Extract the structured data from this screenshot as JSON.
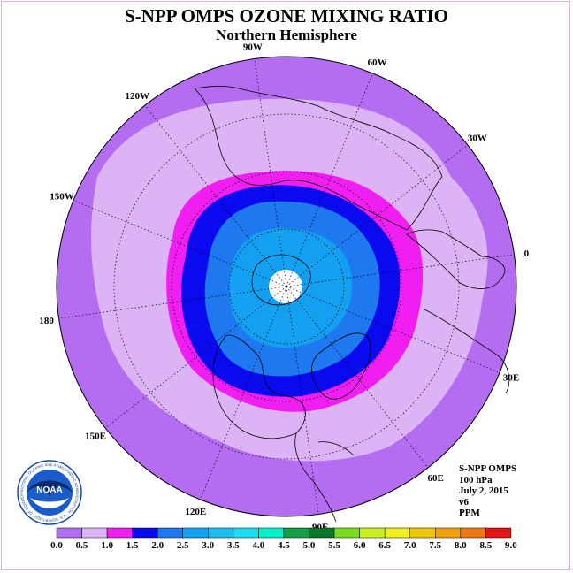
{
  "title": "S-NPP OMPS OZONE MIXING RATIO",
  "subtitle": "Northern Hemisphere",
  "longitude_labels": [
    "0",
    "30E",
    "60E",
    "90E",
    "120E",
    "150E",
    "180",
    "150W",
    "120W",
    "90W",
    "60W",
    "30W"
  ],
  "info": {
    "instrument": "S-NPP OMPS",
    "level": "100 hPa",
    "date": "July 2, 2015",
    "version": "v6",
    "units": "PPM"
  },
  "logo": {
    "text": "NOAA",
    "ring_text": "NATIONAL OCEANIC AND ATMOSPHERIC ADMINISTRATION · U.S. DEPARTMENT OF COMMERCE"
  },
  "colorbar": {
    "ticks": [
      "0.0",
      "0.5",
      "1.0",
      "1.5",
      "2.0",
      "2.5",
      "3.0",
      "3.5",
      "4.0",
      "4.5",
      "5.0",
      "5.5",
      "6.0",
      "6.5",
      "7.0",
      "7.5",
      "8.0",
      "8.5",
      "9.0"
    ],
    "colors": [
      "#b46cf0",
      "#dcb4f6",
      "#f01ef0",
      "#0a0aef",
      "#1e78f0",
      "#14a0f0",
      "#1ebef0",
      "#1edcf0",
      "#00f0c8",
      "#14a046",
      "#0a7828",
      "#78dc1e",
      "#c8f01e",
      "#f0f01e",
      "#f0c80a",
      "#f0a00a",
      "#f07814",
      "#e61414",
      "#8c5a3c"
    ]
  },
  "map_colors": {
    "outer": "#b46cf0",
    "band_0_5": "#dcb4f6",
    "band_1_0": "#f01ef0",
    "band_1_5": "#0a0aef",
    "band_2_0": "#1e78f0",
    "band_2_5": "#14a0f0",
    "pole": "#ffffff"
  }
}
